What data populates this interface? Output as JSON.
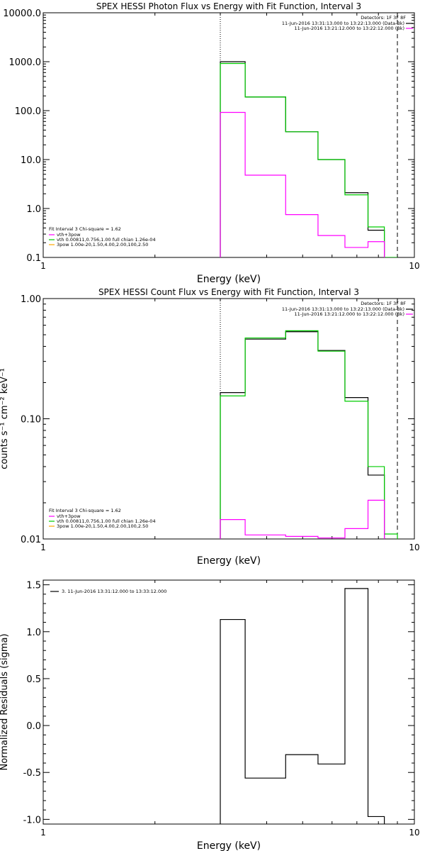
{
  "chart_data": [
    {
      "type": "line",
      "title": "SPEX HESSI Photon Flux vs Energy with Fit Function, Interval 3",
      "xlabel": "Energy (keV)",
      "ylabel": "",
      "xscale": "log",
      "yscale": "log",
      "xlim": [
        1,
        10
      ],
      "ylim": [
        0.1,
        10000
      ],
      "x_ticks": [
        {
          "v": 1,
          "label": "1"
        },
        {
          "v": 10,
          "label": "10"
        }
      ],
      "y_ticks": [
        {
          "v": 0.1,
          "label": "0.1"
        },
        {
          "v": 1,
          "label": "1.0"
        },
        {
          "v": 10,
          "label": "10.0"
        },
        {
          "v": 100,
          "label": "100.0"
        },
        {
          "v": 1000,
          "label": "1000.0"
        },
        {
          "v": 10000,
          "label": "10000.0"
        }
      ],
      "vlines": [
        {
          "x": 3.0,
          "style": "dotted"
        },
        {
          "x": 9.0,
          "style": "dashed"
        }
      ],
      "edges": [
        3.0,
        3.5,
        4.5,
        5.5,
        6.5,
        7.5,
        8.3,
        9.0,
        10.0
      ],
      "series": [
        {
          "color": "#000000",
          "values": [
            1000,
            190,
            37,
            10,
            2.1,
            0.36,
            null,
            null
          ]
        },
        {
          "color": "#00cc00",
          "values": [
            920,
            190,
            37,
            10,
            1.9,
            0.42,
            0.1,
            null
          ]
        },
        {
          "color": "#ff00ff",
          "values": [
            92,
            4.8,
            0.75,
            0.28,
            0.16,
            0.21,
            null,
            null
          ]
        }
      ],
      "legend_topright": {
        "header": "Detectors: 1F 3F 8F",
        "entries": [
          {
            "label": "11-Jun-2016 13:31:13.000 to 13:22:13.000 (Data-Bk)",
            "color": "#000000"
          },
          {
            "label": "11-Jun-2016 13:21:12.000 to 13:22:12.000 (Bk)",
            "color": "#ff00ff"
          }
        ]
      },
      "legend_bottomleft": {
        "header": "Fit Interval 3   Chi-square = 1.62",
        "entries": [
          {
            "label": "vth+3pow",
            "color": "#ff00ff"
          },
          {
            "label": "vth 0.00811,0.756,1.00  full chian 1.26e-04",
            "color": "#00cc00"
          },
          {
            "label": "3pow 1.00e-20,1.50,4.00,2.00,100,2.50",
            "color": "#ffaa00"
          }
        ]
      }
    },
    {
      "type": "line",
      "title": "SPEX HESSI Count Flux vs Energy with Fit Function, Interval 3",
      "xlabel": "Energy (keV)",
      "ylabel": "counts s⁻¹ cm⁻² keV⁻¹",
      "xscale": "log",
      "yscale": "log",
      "xlim": [
        1,
        10
      ],
      "ylim": [
        0.01,
        1.0
      ],
      "x_ticks": [
        {
          "v": 1,
          "label": "1"
        },
        {
          "v": 10,
          "label": "10"
        }
      ],
      "y_ticks": [
        {
          "v": 0.01,
          "label": "0.01"
        },
        {
          "v": 0.1,
          "label": "0.10"
        },
        {
          "v": 1.0,
          "label": "1.00"
        }
      ],
      "vlines": [
        {
          "x": 3.0,
          "style": "dotted"
        },
        {
          "x": 9.0,
          "style": "dashed"
        }
      ],
      "edges": [
        3.0,
        3.5,
        4.5,
        5.5,
        6.5,
        7.5,
        8.3,
        9.0,
        10.0
      ],
      "series": [
        {
          "color": "#000000",
          "values": [
            0.165,
            0.46,
            0.53,
            0.37,
            0.15,
            0.034,
            null,
            null
          ]
        },
        {
          "color": "#00cc00",
          "values": [
            0.155,
            0.47,
            0.54,
            0.365,
            0.14,
            0.04,
            0.011,
            null
          ]
        },
        {
          "color": "#ff00ff",
          "values": [
            0.0145,
            0.0108,
            0.0105,
            0.0102,
            0.0122,
            0.021,
            null,
            null
          ]
        }
      ],
      "legend_topright": {
        "header": "Detectors: 1F 3F 8F",
        "entries": [
          {
            "label": "11-Jun-2016 13:31:13.000 to 13:22:13.000 (Data-Bk)",
            "color": "#000000"
          },
          {
            "label": "11-Jun-2016 13:21:12.000 to 13:22:12.000 (Bk)",
            "color": "#ff00ff"
          }
        ]
      },
      "legend_bottomleft": {
        "header": "Fit Interval 3   Chi-square = 1.62",
        "entries": [
          {
            "label": "vth+3pow",
            "color": "#ff00ff"
          },
          {
            "label": "vth 0.00811,0.756,1.00  full chian 1.26e-04",
            "color": "#00cc00"
          },
          {
            "label": "3pow 1.00e-20,1.50,4.00,2.00,100,2.50",
            "color": "#ffaa00"
          }
        ]
      }
    },
    {
      "type": "line",
      "title": "",
      "xlabel": "Energy (keV)",
      "ylabel": "Normalized Residuals (sigma)",
      "xscale": "log",
      "yscale": "linear",
      "xlim": [
        1,
        10
      ],
      "ylim": [
        -1.05,
        1.55
      ],
      "x_ticks": [
        {
          "v": 1,
          "label": "1"
        },
        {
          "v": 10,
          "label": "10"
        }
      ],
      "y_ticks": [
        {
          "v": -1.0,
          "label": "-1.0"
        },
        {
          "v": -0.5,
          "label": "-0.5"
        },
        {
          "v": 0.0,
          "label": "0.0"
        },
        {
          "v": 0.5,
          "label": "0.5"
        },
        {
          "v": 1.0,
          "label": "1.0"
        },
        {
          "v": 1.5,
          "label": "1.5"
        }
      ],
      "vlines": [],
      "edges": [
        3.0,
        3.5,
        4.5,
        5.5,
        6.5,
        7.5,
        8.3,
        9.0,
        10.0
      ],
      "series": [
        {
          "color": "#000000",
          "values": [
            1.13,
            -0.56,
            -0.31,
            -0.41,
            1.46,
            -0.97,
            null,
            null
          ]
        }
      ],
      "legend_topleft": {
        "entries": [
          {
            "label": "3. 11-Jun-2016 13:31:12.000 to 13:33:12.000",
            "color": "#000000"
          }
        ]
      }
    }
  ]
}
